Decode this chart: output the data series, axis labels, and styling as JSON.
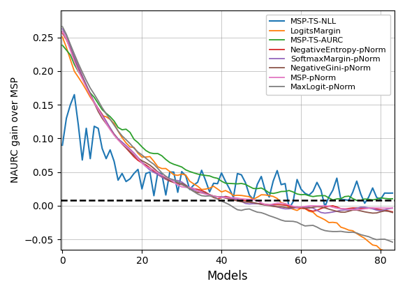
{
  "n_models": 84,
  "dashed_line_y": 0.008,
  "ylim": [
    -0.065,
    0.29
  ],
  "xlim": [
    -0.5,
    83.5
  ],
  "xlabel": "Models",
  "ylabel": "NAURC gain over MSP",
  "series": {
    "MSP-TS-NLL": {
      "color": "#1f77b4"
    },
    "LogitsMargin": {
      "color": "#ff7f0e"
    },
    "MSP-TS-AURC": {
      "color": "#2ca02c"
    },
    "NegativeEntropy-pNorm": {
      "color": "#d62728"
    },
    "SoftmaxMargin-pNorm": {
      "color": "#9467bd"
    },
    "NegativeGini-pNorm": {
      "color": "#8c564b"
    },
    "MSP-pNorm": {
      "color": "#e377c2"
    },
    "MaxLogit-pNorm": {
      "color": "#7f7f7f"
    }
  },
  "legend_loc": "upper right",
  "grid": true
}
